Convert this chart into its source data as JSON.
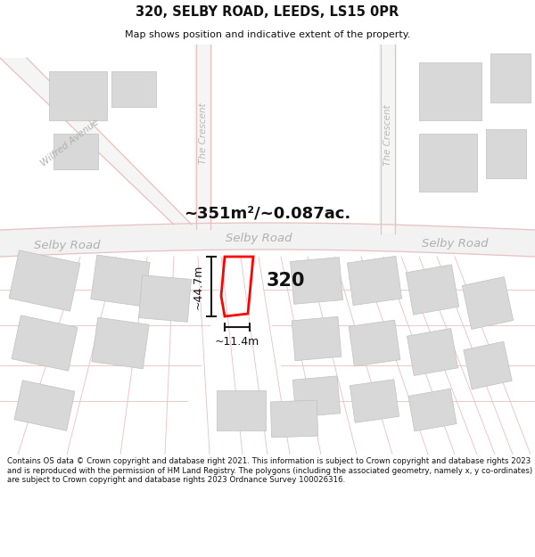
{
  "title": "320, SELBY ROAD, LEEDS, LS15 0PR",
  "subtitle": "Map shows position and indicative extent of the property.",
  "area_label": "~351m²/~0.087ac.",
  "property_number": "320",
  "dim_height": "~44.7m",
  "dim_width": "~11.4m",
  "footer": "Contains OS data © Crown copyright and database right 2021. This information is subject to Crown copyright and database rights 2023 and is reproduced with the permission of HM Land Registry. The polygons (including the associated geometry, namely x, y co-ordinates) are subject to Crown copyright and database rights 2023 Ordnance Survey 100026316.",
  "bg_color": "#ffffff",
  "map_bg": "#ffffff",
  "road_color": "#e8c0c0",
  "building_color": "#d8d8d8",
  "property_outline_color": "#ff0000",
  "dim_line_color": "#1a1a1a",
  "road_label_color": "#c0c0c0",
  "selby_road_label_color": "#b0b0b0"
}
